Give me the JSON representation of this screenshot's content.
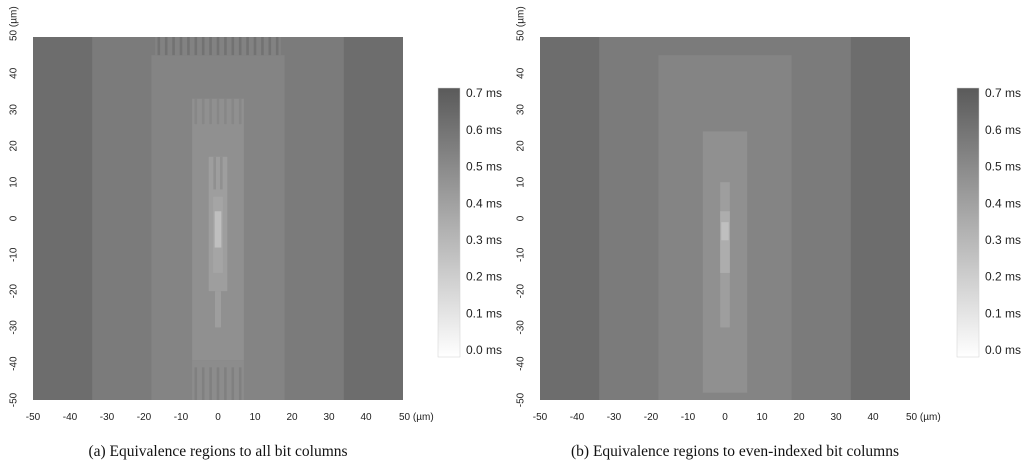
{
  "chart_data": [
    {
      "type": "heatmap",
      "caption": "(a) Equivalence regions to all bit columns",
      "xlim": [
        -50,
        50
      ],
      "ylim": [
        -50,
        50
      ],
      "x_ticks": [
        "-50",
        "-40",
        "-30",
        "-20",
        "-10",
        "0",
        "10",
        "20",
        "30",
        "40",
        "50 (µm)"
      ],
      "y_ticks": [
        "-50",
        "-40",
        "-30",
        "-20",
        "-10",
        "0",
        "10",
        "20",
        "30",
        "40",
        "50 (µm)"
      ],
      "colorbar": {
        "range": [
          0,
          0.7
        ],
        "unit": "ms",
        "labels": [
          "0.7 ms",
          "0.6 ms",
          "0.5 ms",
          "0.4 ms",
          "0.3 ms",
          "0.2 ms",
          "0.1 ms",
          "0.0 ms"
        ]
      },
      "regions": [
        {
          "x0": -50,
          "x1": 50,
          "y0": -50,
          "y1": 50,
          "value": 0.62
        },
        {
          "x0": -34,
          "x1": 34,
          "y0": -50,
          "y1": 50,
          "value": 0.56
        },
        {
          "x0": -18,
          "x1": 18,
          "y0": -50,
          "y1": 45,
          "value": 0.52
        },
        {
          "x0": -17,
          "x1": 17,
          "y0": 45,
          "y1": 50,
          "value": 0.53
        },
        {
          "x0": -7,
          "x1": 7,
          "y0": -39,
          "y1": 33,
          "value": 0.47
        },
        {
          "x0": -7,
          "x1": 7,
          "y0": -50,
          "y1": -39,
          "value": 0.49
        },
        {
          "x0": -2.5,
          "x1": 2.5,
          "y0": -20,
          "y1": 17,
          "value": 0.41
        },
        {
          "x0": -0.8,
          "x1": 0.8,
          "y0": -30,
          "y1": -20,
          "value": 0.41
        },
        {
          "x0": -1.3,
          "x1": 1.3,
          "y0": -15,
          "y1": 6,
          "value": 0.38
        },
        {
          "x0": -0.9,
          "x1": 0.9,
          "y0": -8,
          "y1": 2,
          "value": 0.27
        }
      ]
    },
    {
      "type": "heatmap",
      "caption": "(b) Equivalence regions to even-indexed bit columns",
      "xlim": [
        -50,
        50
      ],
      "ylim": [
        -50,
        50
      ],
      "x_ticks": [
        "-50",
        "-40",
        "-30",
        "-20",
        "-10",
        "0",
        "10",
        "20",
        "30",
        "40",
        "50 (µm)"
      ],
      "y_ticks": [
        "-50",
        "-40",
        "-30",
        "-20",
        "-10",
        "0",
        "10",
        "20",
        "30",
        "40",
        "50 (µm)"
      ],
      "colorbar": {
        "range": [
          0,
          0.7
        ],
        "unit": "ms",
        "labels": [
          "0.7 ms",
          "0.6 ms",
          "0.5 ms",
          "0.4 ms",
          "0.3 ms",
          "0.2 ms",
          "0.1 ms",
          "0.0 ms"
        ]
      },
      "regions": [
        {
          "x0": -50,
          "x1": 50,
          "y0": -50,
          "y1": 50,
          "value": 0.62
        },
        {
          "x0": -34,
          "x1": 34,
          "y0": -50,
          "y1": 50,
          "value": 0.56
        },
        {
          "x0": -18,
          "x1": 18,
          "y0": -50,
          "y1": 45,
          "value": 0.52
        },
        {
          "x0": -6,
          "x1": 6,
          "y0": -48,
          "y1": 24,
          "value": 0.47
        },
        {
          "x0": -1.3,
          "x1": 1.3,
          "y0": -30,
          "y1": 10,
          "value": 0.41
        },
        {
          "x0": -1.3,
          "x1": 1.3,
          "y0": -15,
          "y1": 2,
          "value": 0.35
        },
        {
          "x0": -1,
          "x1": 1,
          "y0": -6,
          "y1": -1,
          "value": 0.27
        }
      ]
    }
  ]
}
